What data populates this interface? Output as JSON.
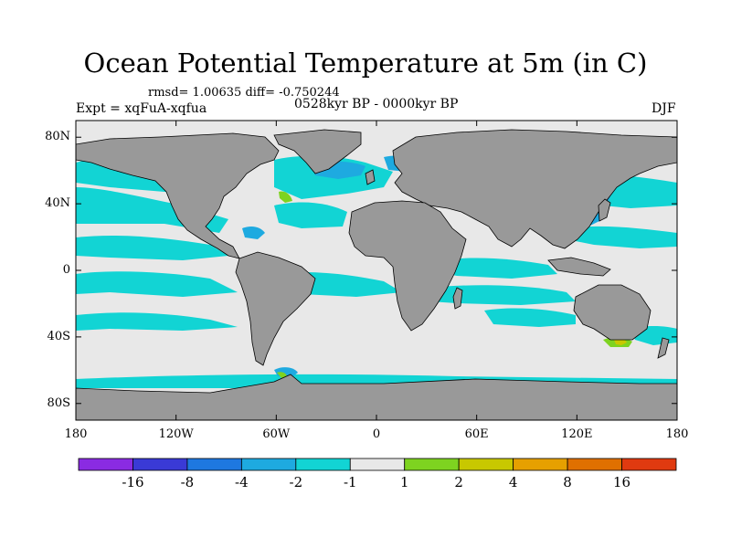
{
  "map": {
    "title": "Ocean Potential Temperature at 5m (in C)",
    "stats": "rmsd= 1.00635 diff= -0.750244",
    "experiment": "Expt = xqFuA-xqfua",
    "period": "0528kyr BP - 0000kyr BP",
    "season": "DJF",
    "projection": "cylindrical-equidistant",
    "lon_range": [
      -180,
      180
    ],
    "lat_range": [
      -90,
      90
    ],
    "land_color": "#999999",
    "ocean_base_color": "#e8e8e8",
    "lat_ticks": [
      {
        "label": "80N",
        "lat": 80
      },
      {
        "label": "40N",
        "lat": 40
      },
      {
        "label": "0",
        "lat": 0
      },
      {
        "label": "40S",
        "lat": -40
      },
      {
        "label": "80S",
        "lat": -80
      }
    ],
    "lon_ticks": [
      {
        "label": "180",
        "lon": -180
      },
      {
        "label": "120W",
        "lon": -120
      },
      {
        "label": "60W",
        "lon": -60
      },
      {
        "label": "0",
        "lon": 0
      },
      {
        "label": "60E",
        "lon": 60
      },
      {
        "label": "120E",
        "lon": 120
      },
      {
        "label": "180",
        "lon": 180
      }
    ]
  },
  "colorbar": {
    "colors": [
      "#8a2be2",
      "#3a3ad6",
      "#1e78e0",
      "#1eaae0",
      "#12d4d4",
      "#e8e8e8",
      "#7ed320",
      "#c8c800",
      "#e6a000",
      "#e07000",
      "#e03a10"
    ],
    "labels": [
      "-16",
      "-8",
      "-4",
      "-2",
      "-1",
      "1",
      "2",
      "4",
      "8",
      "16"
    ]
  }
}
